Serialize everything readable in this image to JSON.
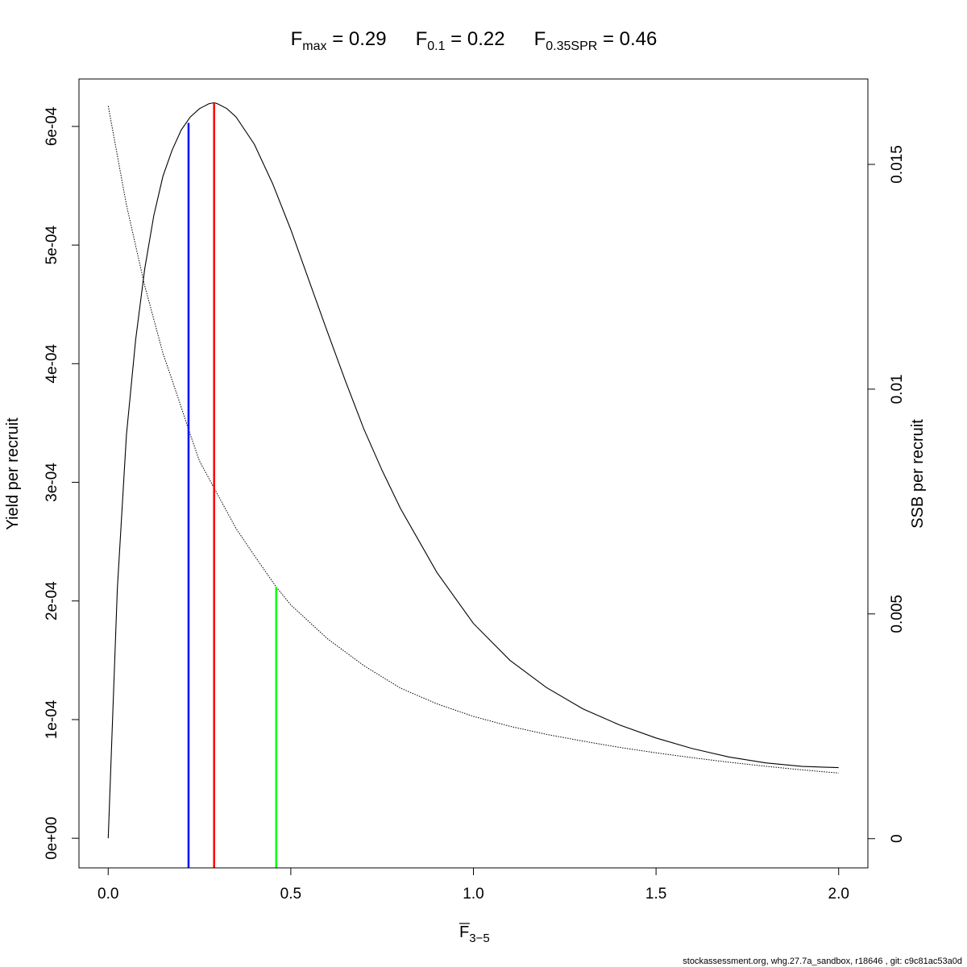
{
  "title": {
    "parts": [
      {
        "main": "F",
        "sub": "max",
        "value": " = 0.29"
      },
      {
        "main": "F",
        "sub": "0.1",
        "value": " = 0.22"
      },
      {
        "main": "F",
        "sub": "0.35SPR",
        "value": " = 0.46"
      }
    ]
  },
  "footer": "stockassessment.org, whg.27.7a_sandbox, r18646 , git: c9c81ac53a0d",
  "chart_data": {
    "type": "line",
    "xlabel": {
      "main": "F",
      "sub": "3−5",
      "overbar": true
    },
    "ylabel_left": "Yield per recruit",
    "ylabel_right": "SSB per recruit",
    "xlim": [
      -0.08,
      2.08
    ],
    "ylim_left": [
      -2.5e-05,
      0.00064
    ],
    "ylim_right": [
      -0.00065,
      0.0169
    ],
    "x_ticks": [
      0,
      0.5,
      1,
      1.5,
      2
    ],
    "x_tick_labels": [
      "0.0",
      "0.5",
      "1.0",
      "1.5",
      "2.0"
    ],
    "y_left_ticks": [
      0,
      0.0001,
      0.0002,
      0.0003,
      0.0004,
      0.0005,
      0.0006
    ],
    "y_left_tick_labels": [
      "0e+00",
      "1e-04",
      "2e-04",
      "3e-04",
      "4e-04",
      "5e-04",
      "6e-04"
    ],
    "y_right_ticks": [
      0,
      0.005,
      0.01,
      0.015
    ],
    "y_right_tick_labels": [
      "0",
      "0.005",
      "0.01",
      "0.015"
    ],
    "grid": false,
    "series": [
      {
        "axis": "left",
        "style": "solid",
        "color": "#000000",
        "x": [
          0,
          0.025,
          0.05,
          0.075,
          0.1,
          0.125,
          0.15,
          0.175,
          0.2,
          0.225,
          0.25,
          0.275,
          0.29,
          0.3,
          0.325,
          0.35,
          0.4,
          0.45,
          0.5,
          0.55,
          0.6,
          0.65,
          0.7,
          0.75,
          0.8,
          0.9,
          1.0,
          1.1,
          1.2,
          1.3,
          1.4,
          1.5,
          1.6,
          1.7,
          1.8,
          1.9,
          2.0
        ],
        "values": [
          0,
          0.00021,
          0.00034,
          0.00042,
          0.00048,
          0.000525,
          0.000558,
          0.00058,
          0.000597,
          0.000608,
          0.000615,
          0.000619,
          0.00062,
          0.000619,
          0.000615,
          0.000608,
          0.000585,
          0.000552,
          0.000513,
          0.00047,
          0.000427,
          0.000385,
          0.000345,
          0.00031,
          0.000278,
          0.000224,
          0.000181,
          0.00015,
          0.000127,
          0.000109,
          9.55e-05,
          8.45e-05,
          7.55e-05,
          6.85e-05,
          6.35e-05,
          6.05e-05,
          5.95e-05
        ]
      },
      {
        "axis": "right",
        "style": "dotted",
        "color": "#000000",
        "x": [
          0,
          0.05,
          0.1,
          0.15,
          0.2,
          0.22,
          0.25,
          0.29,
          0.35,
          0.4,
          0.46,
          0.5,
          0.6,
          0.7,
          0.8,
          0.9,
          1.0,
          1.1,
          1.2,
          1.3,
          1.4,
          1.5,
          1.6,
          1.7,
          1.8,
          1.9,
          2.0
        ],
        "values": [
          0.0163,
          0.0141,
          0.0123,
          0.0108,
          0.0096,
          0.0091,
          0.0084,
          0.0078,
          0.0069,
          0.0063,
          0.0056,
          0.0052,
          0.00445,
          0.00385,
          0.00335,
          0.003,
          0.00272,
          0.0025,
          0.00232,
          0.00217,
          0.00203,
          0.00191,
          0.0018,
          0.0017,
          0.00161,
          0.00153,
          0.00146
        ]
      }
    ],
    "reference_lines": [
      {
        "x": 0.22,
        "color": "#0000ff",
        "axis": "left",
        "y_top": 0.000603
      },
      {
        "x": 0.29,
        "color": "#ff0000",
        "axis": "left",
        "y_top": 0.00062
      },
      {
        "x": 0.46,
        "color": "#00ff00",
        "axis": "right",
        "y_top": 0.0056
      }
    ]
  }
}
